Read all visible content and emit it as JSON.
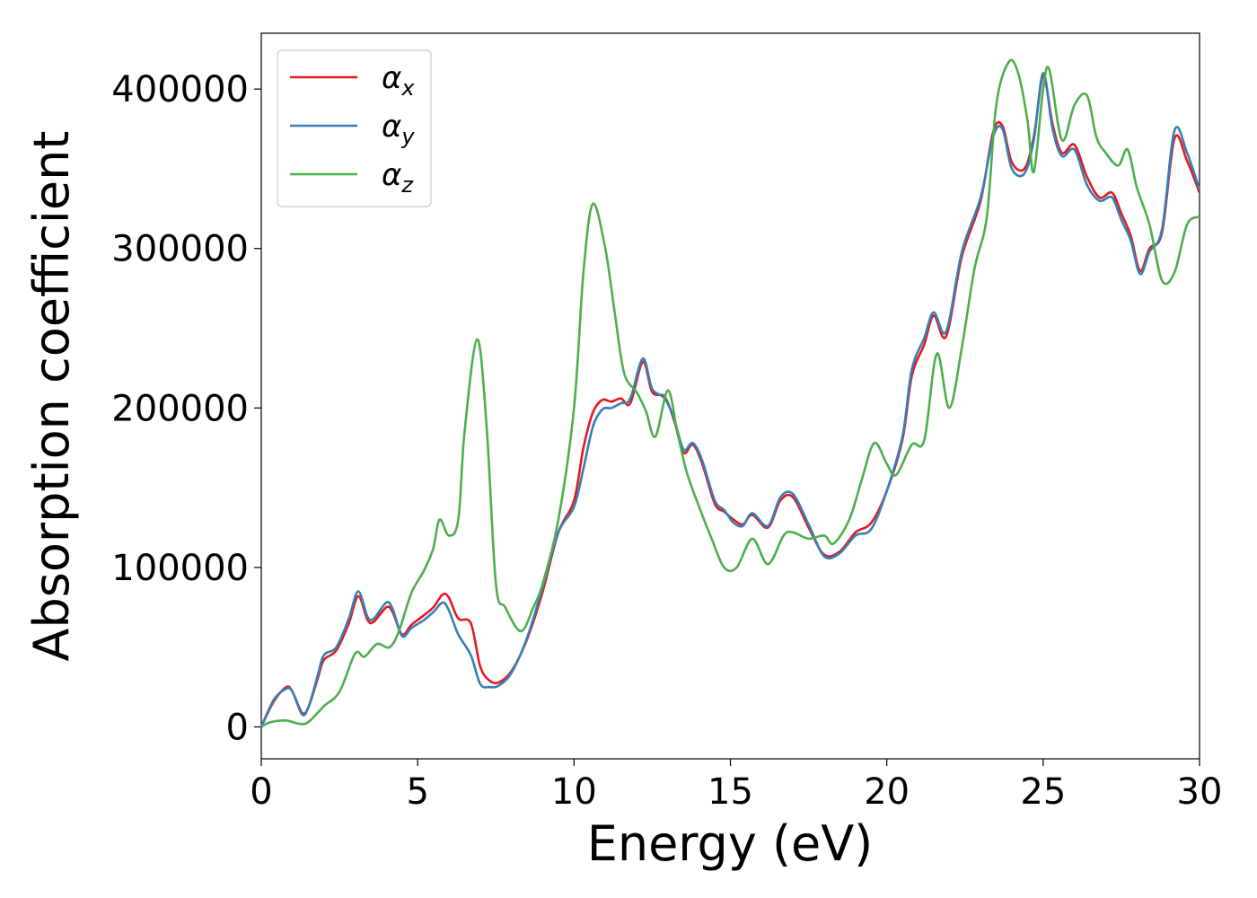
{
  "chart_data": {
    "type": "line",
    "xlabel": "Energy (eV)",
    "ylabel": "Absorption coefficient",
    "xlim": [
      0,
      30
    ],
    "ylim": [
      -20000,
      435000
    ],
    "xticks": [
      0,
      5,
      10,
      15,
      20,
      25,
      30
    ],
    "xtick_labels": [
      "0",
      "5",
      "10",
      "15",
      "20",
      "25",
      "30"
    ],
    "yticks": [
      0,
      100000,
      200000,
      300000,
      400000
    ],
    "ytick_labels": [
      "0",
      "100000",
      "200000",
      "300000",
      "400000"
    ],
    "grid": false,
    "legend_position": "top-left",
    "series": [
      {
        "name": "α",
        "subscript": "x",
        "color": "#e41a1c",
        "points": [
          [
            0,
            0
          ],
          [
            0.4,
            16000
          ],
          [
            0.8,
            25000
          ],
          [
            1.0,
            22000
          ],
          [
            1.3,
            9000
          ],
          [
            1.5,
            12000
          ],
          [
            1.8,
            30000
          ],
          [
            2.0,
            42000
          ],
          [
            2.4,
            48000
          ],
          [
            2.8,
            65000
          ],
          [
            3.1,
            82000
          ],
          [
            3.4,
            67000
          ],
          [
            3.6,
            66000
          ],
          [
            4.0,
            75000
          ],
          [
            4.2,
            72000
          ],
          [
            4.5,
            58000
          ],
          [
            4.8,
            64000
          ],
          [
            5.2,
            70000
          ],
          [
            5.5,
            75000
          ],
          [
            5.8,
            83000
          ],
          [
            6.0,
            81000
          ],
          [
            6.3,
            68000
          ],
          [
            6.7,
            65000
          ],
          [
            7.0,
            38000
          ],
          [
            7.3,
            29000
          ],
          [
            7.6,
            28000
          ],
          [
            8.0,
            35000
          ],
          [
            8.5,
            55000
          ],
          [
            9.0,
            85000
          ],
          [
            9.5,
            122000
          ],
          [
            10.0,
            142000
          ],
          [
            10.3,
            175000
          ],
          [
            10.6,
            197000
          ],
          [
            10.9,
            205000
          ],
          [
            11.2,
            204000
          ],
          [
            11.5,
            206000
          ],
          [
            11.8,
            203000
          ],
          [
            12.2,
            229000
          ],
          [
            12.5,
            210000
          ],
          [
            12.9,
            207000
          ],
          [
            13.2,
            192000
          ],
          [
            13.5,
            172000
          ],
          [
            13.8,
            177000
          ],
          [
            14.1,
            165000
          ],
          [
            14.5,
            140000
          ],
          [
            14.8,
            135000
          ],
          [
            15.1,
            130000
          ],
          [
            15.4,
            127000
          ],
          [
            15.7,
            133000
          ],
          [
            16.2,
            125000
          ],
          [
            16.6,
            142000
          ],
          [
            17.0,
            144000
          ],
          [
            17.5,
            125000
          ],
          [
            18.0,
            108000
          ],
          [
            18.5,
            110000
          ],
          [
            19.0,
            122000
          ],
          [
            19.5,
            128000
          ],
          [
            20.0,
            148000
          ],
          [
            20.5,
            180000
          ],
          [
            20.8,
            220000
          ],
          [
            21.2,
            240000
          ],
          [
            21.5,
            258000
          ],
          [
            21.9,
            245000
          ],
          [
            22.4,
            295000
          ],
          [
            23.0,
            330000
          ],
          [
            23.4,
            373000
          ],
          [
            23.7,
            377000
          ],
          [
            24.0,
            354000
          ],
          [
            24.4,
            350000
          ],
          [
            24.7,
            370000
          ],
          [
            25.0,
            408000
          ],
          [
            25.3,
            378000
          ],
          [
            25.6,
            360000
          ],
          [
            26.0,
            365000
          ],
          [
            26.4,
            345000
          ],
          [
            26.8,
            332000
          ],
          [
            27.2,
            335000
          ],
          [
            27.5,
            322000
          ],
          [
            27.8,
            308000
          ],
          [
            28.1,
            286000
          ],
          [
            28.4,
            300000
          ],
          [
            28.8,
            310000
          ],
          [
            29.2,
            369000
          ],
          [
            29.6,
            355000
          ],
          [
            30.0,
            335000
          ]
        ]
      },
      {
        "name": "α",
        "subscript": "y",
        "color": "#377eb8",
        "points": [
          [
            0,
            0
          ],
          [
            0.4,
            17000
          ],
          [
            0.8,
            24000
          ],
          [
            1.0,
            22000
          ],
          [
            1.3,
            8000
          ],
          [
            1.5,
            12000
          ],
          [
            1.8,
            32000
          ],
          [
            2.0,
            45000
          ],
          [
            2.4,
            50000
          ],
          [
            2.8,
            68000
          ],
          [
            3.1,
            85000
          ],
          [
            3.4,
            69000
          ],
          [
            3.6,
            68000
          ],
          [
            4.0,
            78000
          ],
          [
            4.2,
            74000
          ],
          [
            4.5,
            57000
          ],
          [
            4.8,
            62000
          ],
          [
            5.2,
            67000
          ],
          [
            5.5,
            72000
          ],
          [
            5.8,
            78000
          ],
          [
            6.0,
            73000
          ],
          [
            6.3,
            58000
          ],
          [
            6.7,
            45000
          ],
          [
            7.0,
            27000
          ],
          [
            7.3,
            25000
          ],
          [
            7.6,
            26000
          ],
          [
            8.0,
            34000
          ],
          [
            8.5,
            56000
          ],
          [
            9.0,
            88000
          ],
          [
            9.5,
            122000
          ],
          [
            10.0,
            138000
          ],
          [
            10.3,
            162000
          ],
          [
            10.6,
            188000
          ],
          [
            10.9,
            199000
          ],
          [
            11.2,
            200000
          ],
          [
            11.5,
            203000
          ],
          [
            11.8,
            206000
          ],
          [
            12.2,
            231000
          ],
          [
            12.5,
            212000
          ],
          [
            12.9,
            206000
          ],
          [
            13.2,
            193000
          ],
          [
            13.5,
            174000
          ],
          [
            13.8,
            178000
          ],
          [
            14.1,
            167000
          ],
          [
            14.5,
            142000
          ],
          [
            14.8,
            136000
          ],
          [
            15.1,
            128000
          ],
          [
            15.4,
            126000
          ],
          [
            15.7,
            134000
          ],
          [
            16.2,
            126000
          ],
          [
            16.6,
            144000
          ],
          [
            17.0,
            146000
          ],
          [
            17.5,
            127000
          ],
          [
            18.0,
            107000
          ],
          [
            18.5,
            109000
          ],
          [
            19.0,
            120000
          ],
          [
            19.5,
            124000
          ],
          [
            20.0,
            148000
          ],
          [
            20.5,
            182000
          ],
          [
            20.8,
            224000
          ],
          [
            21.2,
            244000
          ],
          [
            21.5,
            260000
          ],
          [
            21.9,
            248000
          ],
          [
            22.4,
            298000
          ],
          [
            23.0,
            332000
          ],
          [
            23.4,
            370000
          ],
          [
            23.7,
            375000
          ],
          [
            24.0,
            350000
          ],
          [
            24.4,
            347000
          ],
          [
            24.7,
            368000
          ],
          [
            25.0,
            410000
          ],
          [
            25.3,
            375000
          ],
          [
            25.6,
            358000
          ],
          [
            26.0,
            362000
          ],
          [
            26.4,
            340000
          ],
          [
            26.8,
            330000
          ],
          [
            27.2,
            332000
          ],
          [
            27.5,
            318000
          ],
          [
            27.8,
            305000
          ],
          [
            28.1,
            284000
          ],
          [
            28.4,
            298000
          ],
          [
            28.8,
            312000
          ],
          [
            29.2,
            374000
          ],
          [
            29.6,
            360000
          ],
          [
            30.0,
            337000
          ]
        ]
      },
      {
        "name": "α",
        "subscript": "z",
        "color": "#4daf4a",
        "points": [
          [
            0,
            0
          ],
          [
            0.3,
            3000
          ],
          [
            0.8,
            4000
          ],
          [
            1.2,
            2000
          ],
          [
            1.5,
            3000
          ],
          [
            2.0,
            13000
          ],
          [
            2.5,
            22000
          ],
          [
            3.0,
            46000
          ],
          [
            3.3,
            44000
          ],
          [
            3.7,
            52000
          ],
          [
            4.1,
            50000
          ],
          [
            4.4,
            60000
          ],
          [
            4.8,
            84000
          ],
          [
            5.2,
            98000
          ],
          [
            5.5,
            112000
          ],
          [
            5.7,
            130000
          ],
          [
            6.0,
            120000
          ],
          [
            6.3,
            130000
          ],
          [
            6.5,
            185000
          ],
          [
            6.9,
            243000
          ],
          [
            7.2,
            190000
          ],
          [
            7.5,
            90000
          ],
          [
            7.8,
            75000
          ],
          [
            8.3,
            60000
          ],
          [
            8.7,
            75000
          ],
          [
            9.0,
            90000
          ],
          [
            9.5,
            130000
          ],
          [
            10.0,
            200000
          ],
          [
            10.3,
            285000
          ],
          [
            10.6,
            328000
          ],
          [
            11.0,
            300000
          ],
          [
            11.3,
            260000
          ],
          [
            11.6,
            222000
          ],
          [
            12.0,
            210000
          ],
          [
            12.3,
            198000
          ],
          [
            12.6,
            182000
          ],
          [
            13.0,
            211000
          ],
          [
            13.3,
            185000
          ],
          [
            13.6,
            160000
          ],
          [
            14.0,
            138000
          ],
          [
            14.4,
            118000
          ],
          [
            14.8,
            100000
          ],
          [
            15.2,
            100000
          ],
          [
            15.7,
            118000
          ],
          [
            16.2,
            102000
          ],
          [
            16.7,
            120000
          ],
          [
            17.0,
            122000
          ],
          [
            17.5,
            118000
          ],
          [
            18.0,
            120000
          ],
          [
            18.3,
            115000
          ],
          [
            18.8,
            130000
          ],
          [
            19.2,
            155000
          ],
          [
            19.6,
            178000
          ],
          [
            20.0,
            165000
          ],
          [
            20.3,
            158000
          ],
          [
            20.8,
            177000
          ],
          [
            21.2,
            180000
          ],
          [
            21.6,
            234000
          ],
          [
            22.0,
            200000
          ],
          [
            22.4,
            238000
          ],
          [
            22.8,
            287000
          ],
          [
            23.2,
            320000
          ],
          [
            23.5,
            390000
          ],
          [
            23.9,
            417000
          ],
          [
            24.2,
            410000
          ],
          [
            24.5,
            380000
          ],
          [
            24.7,
            348000
          ],
          [
            25.0,
            400000
          ],
          [
            25.2,
            412000
          ],
          [
            25.6,
            368000
          ],
          [
            26.0,
            390000
          ],
          [
            26.4,
            396000
          ],
          [
            26.7,
            370000
          ],
          [
            27.0,
            360000
          ],
          [
            27.4,
            352000
          ],
          [
            27.7,
            362000
          ],
          [
            28.0,
            338000
          ],
          [
            28.4,
            315000
          ],
          [
            28.8,
            280000
          ],
          [
            29.2,
            285000
          ],
          [
            29.6,
            315000
          ],
          [
            30.0,
            320000
          ]
        ]
      }
    ]
  }
}
